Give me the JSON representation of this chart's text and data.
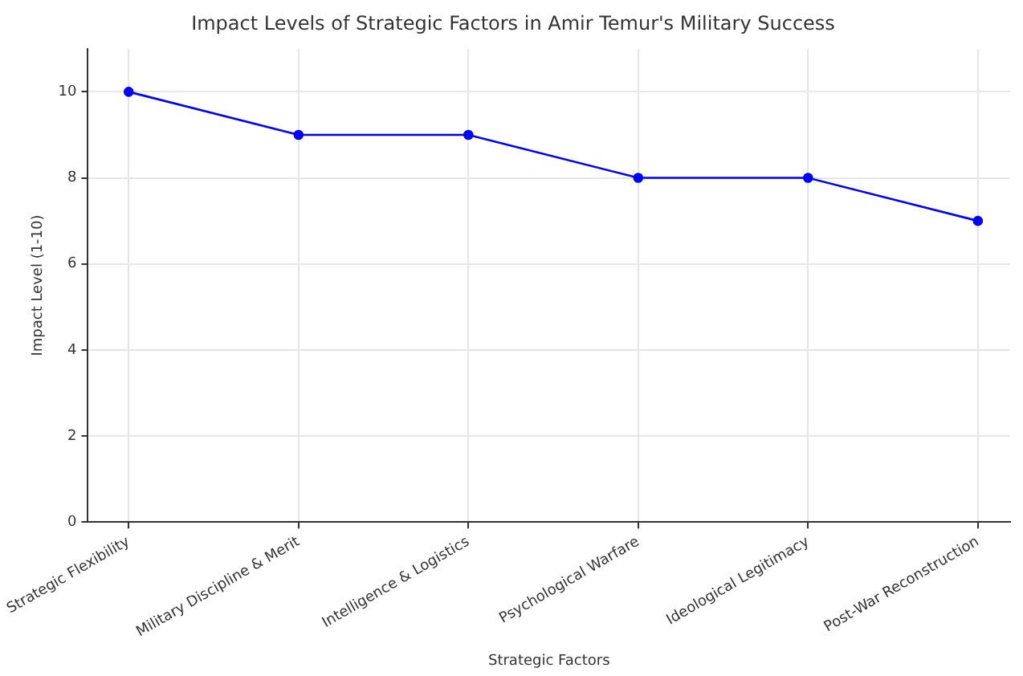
{
  "chart_data": {
    "type": "line",
    "title": "Impact Levels of Strategic Factors in Amir Temur's Military Success",
    "xlabel": "Strategic Factors",
    "ylabel": "Impact Level (1-10)",
    "categories": [
      "Strategic Flexibility",
      "Military Discipline & Merit",
      "Intelligence & Logistics",
      "Psychological Warfare",
      "Ideological Legitimacy",
      "Post-War Reconstruction"
    ],
    "series": [
      {
        "color": "#0000ff",
        "values": [
          10,
          9,
          9,
          8,
          8,
          7
        ]
      }
    ],
    "ylim": [
      0,
      11
    ],
    "yticks": [
      0,
      2,
      4,
      6,
      8,
      10
    ],
    "grid": true,
    "marker": "circle",
    "line_style": "solid",
    "legend": false
  }
}
